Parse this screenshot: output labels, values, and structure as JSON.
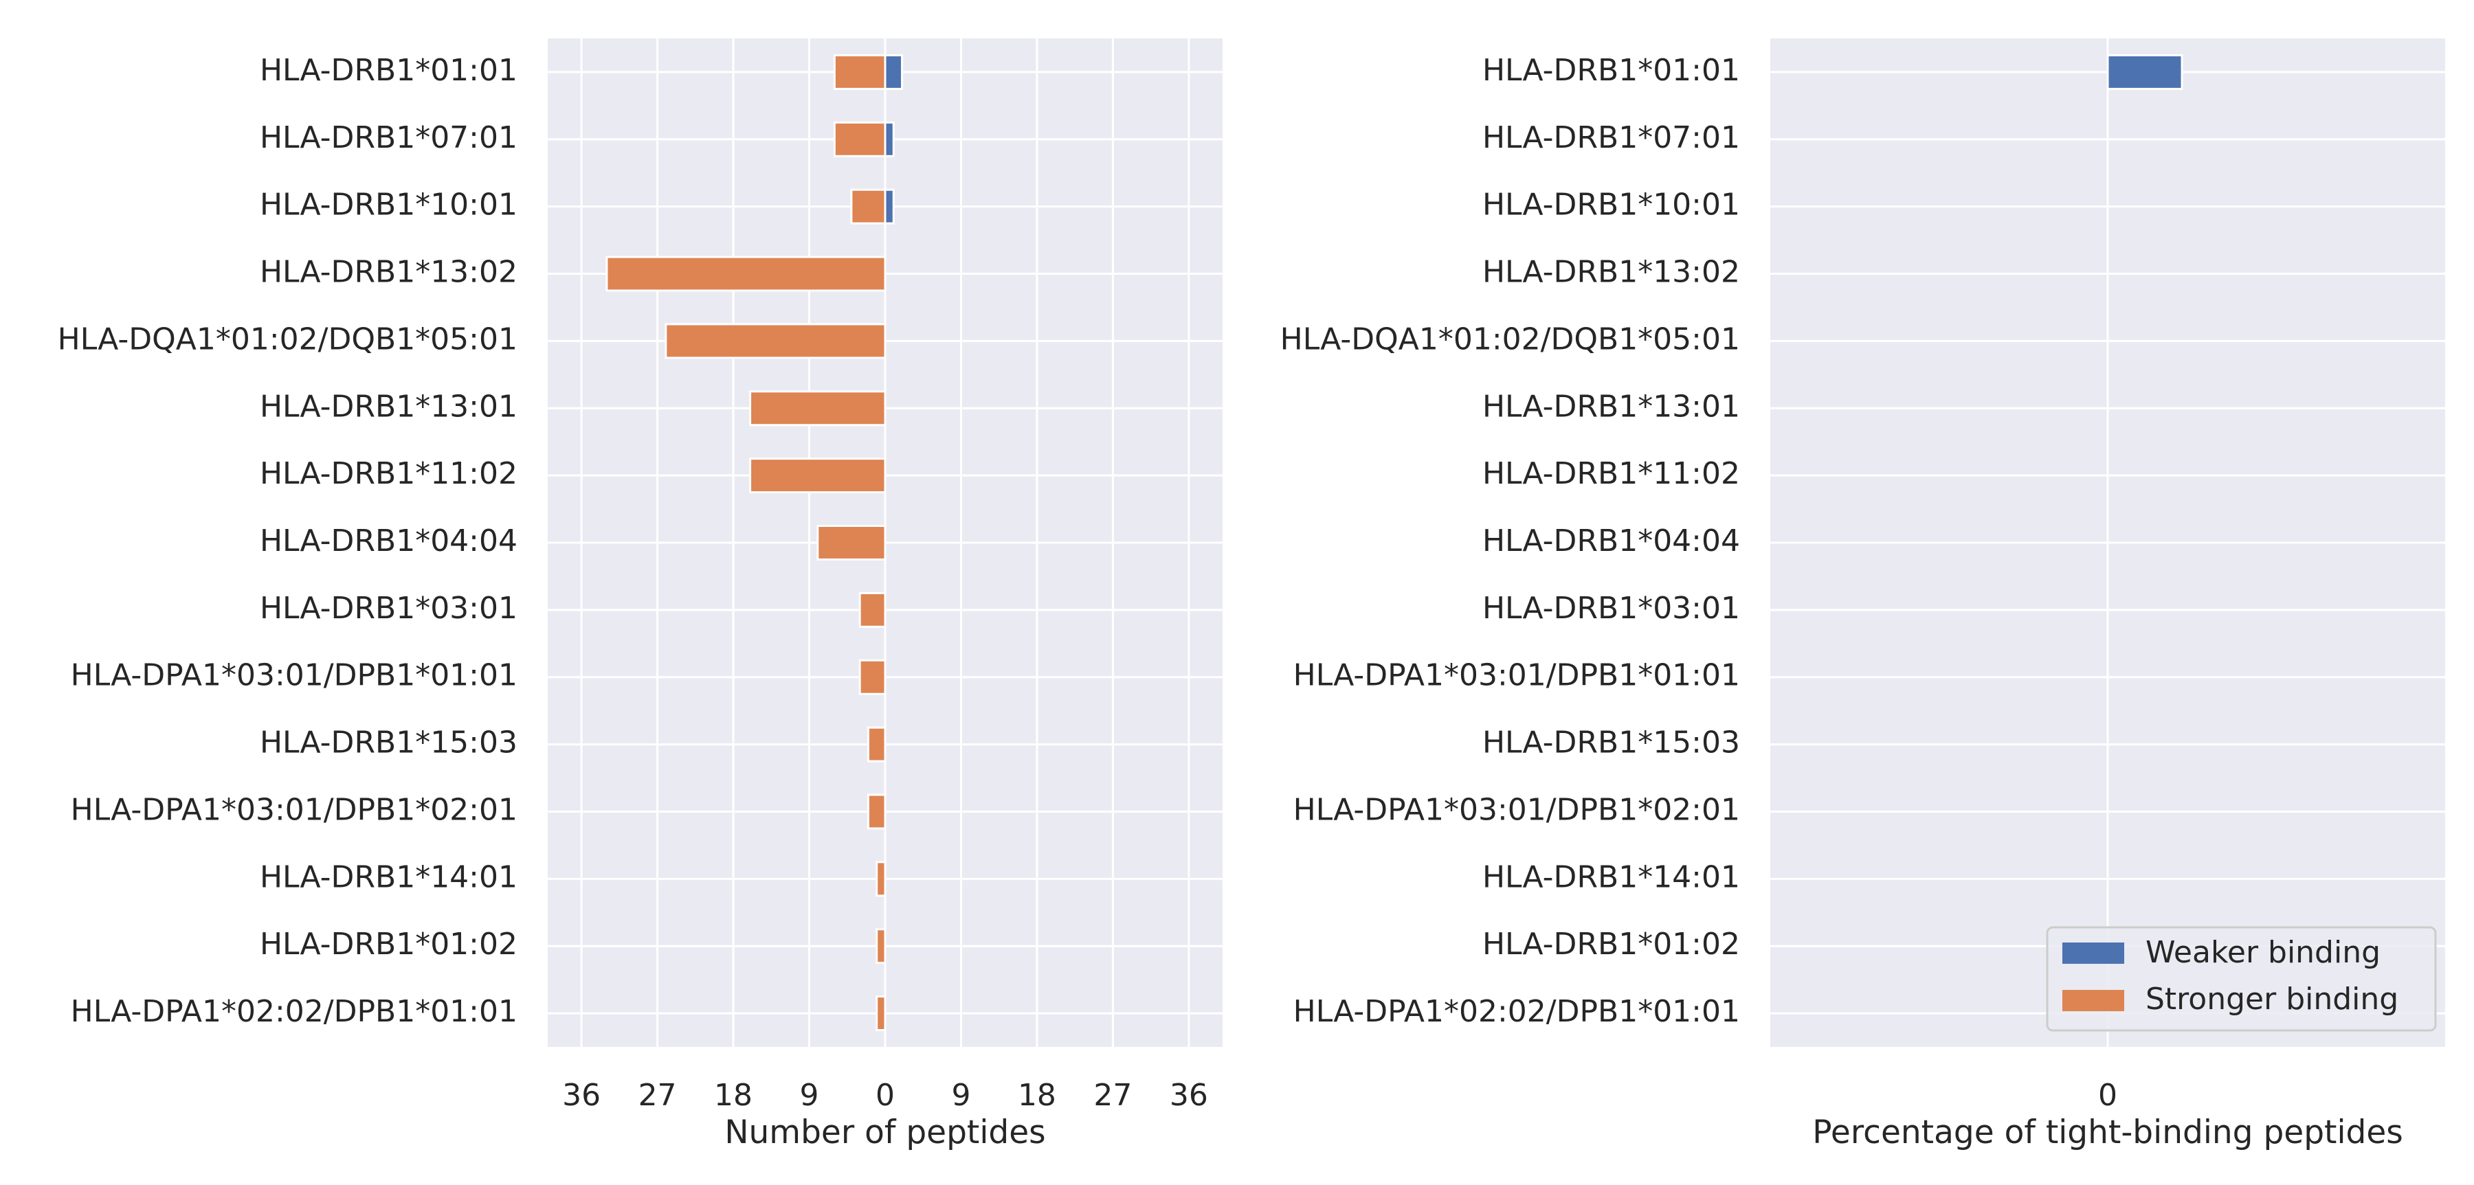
{
  "colors": {
    "weaker": "#4c72b0",
    "stronger": "#dd8452",
    "axes_bg": "#eaeaf2",
    "grid": "#ffffff",
    "text": "#262626"
  },
  "chart_data": [
    {
      "type": "bar",
      "orientation": "horizontal",
      "layout": "diverging",
      "categories": [
        "HLA-DRB1*01:01",
        "HLA-DRB1*07:01",
        "HLA-DRB1*10:01",
        "HLA-DRB1*13:02",
        "HLA-DQA1*01:02/DQB1*05:01",
        "HLA-DRB1*13:01",
        "HLA-DRB1*11:02",
        "HLA-DRB1*04:04",
        "HLA-DRB1*03:01",
        "HLA-DPA1*03:01/DPB1*01:01",
        "HLA-DRB1*15:03",
        "HLA-DPA1*03:01/DPB1*02:01",
        "HLA-DRB1*14:01",
        "HLA-DRB1*01:02",
        "HLA-DPA1*02:02/DPB1*01:01"
      ],
      "series": [
        {
          "name": "Weaker binding",
          "direction": "right",
          "values": [
            2,
            1,
            1,
            0,
            0,
            0,
            0,
            0,
            0,
            0,
            0,
            0,
            0,
            0,
            0
          ]
        },
        {
          "name": "Stronger binding",
          "direction": "left",
          "values": [
            6,
            6,
            4,
            33,
            26,
            16,
            16,
            8,
            3,
            3,
            2,
            2,
            1,
            1,
            1
          ]
        }
      ],
      "xlim": [
        -40,
        40
      ],
      "xticks": [
        -36,
        -27,
        -18,
        -9,
        0,
        9,
        18,
        27,
        36
      ],
      "xtick_labels": [
        "36",
        "27",
        "18",
        "9",
        "0",
        "9",
        "18",
        "27",
        "36"
      ],
      "xlabel": "Number of peptides",
      "grid": true
    },
    {
      "type": "bar",
      "orientation": "horizontal",
      "layout": "diverging",
      "categories": [
        "HLA-DRB1*01:01",
        "HLA-DRB1*07:01",
        "HLA-DRB1*10:01",
        "HLA-DRB1*13:02",
        "HLA-DQA1*01:02/DQB1*05:01",
        "HLA-DRB1*13:01",
        "HLA-DRB1*11:02",
        "HLA-DRB1*04:04",
        "HLA-DRB1*03:01",
        "HLA-DPA1*03:01/DPB1*01:01",
        "HLA-DRB1*15:03",
        "HLA-DPA1*03:01/DPB1*02:01",
        "HLA-DRB1*14:01",
        "HLA-DRB1*01:02",
        "HLA-DPA1*02:02/DPB1*01:01"
      ],
      "series": [
        {
          "name": "Weaker binding",
          "direction": "right",
          "values": [
            0.22,
            0,
            0,
            0,
            0,
            0,
            0,
            0,
            0,
            0,
            0,
            0,
            0,
            0,
            0
          ]
        },
        {
          "name": "Stronger binding",
          "direction": "left",
          "values": [
            0,
            0,
            0,
            0,
            0,
            0,
            0,
            0,
            0,
            0,
            0,
            0,
            0,
            0,
            0
          ]
        }
      ],
      "xlim": [
        -1,
        1
      ],
      "xticks": [
        0
      ],
      "xtick_labels": [
        "0"
      ],
      "xlabel": "Percentage of tight-binding peptides",
      "legend": {
        "position": "lower-right",
        "entries": [
          "Weaker binding",
          "Stronger binding"
        ]
      },
      "grid": true
    }
  ]
}
